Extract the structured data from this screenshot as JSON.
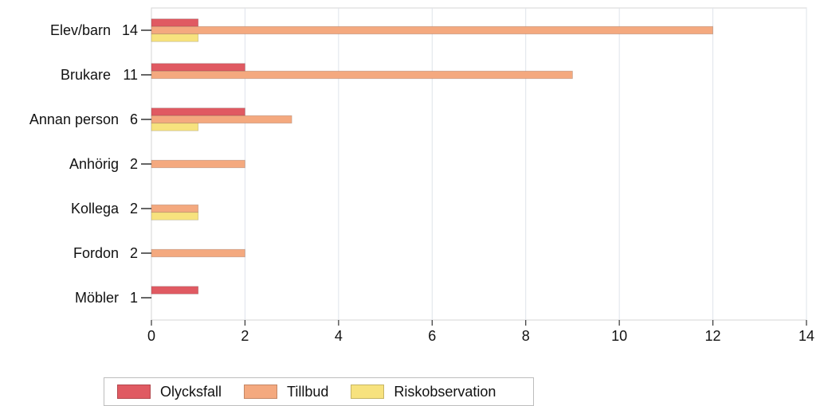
{
  "chart_data": {
    "type": "bar",
    "orientation": "horizontal",
    "categories": [
      "Elev/barn",
      "Brukare",
      "Annan person",
      "Anhörig",
      "Kollega",
      "Fordon",
      "Möbler"
    ],
    "totals": [
      "14",
      "11",
      "6",
      "2",
      "2",
      "2",
      "1"
    ],
    "series": [
      {
        "name": "Olycksfall",
        "values": [
          1,
          2,
          2,
          0,
          0,
          0,
          1
        ],
        "color": "#e05a62"
      },
      {
        "name": "Tillbud",
        "values": [
          12,
          9,
          3,
          2,
          1,
          2,
          0
        ],
        "color": "#f4a97f"
      },
      {
        "name": "Riskobservation",
        "values": [
          1,
          0,
          1,
          0,
          1,
          0,
          0
        ],
        "color": "#f7e27e"
      }
    ],
    "xlim": [
      0,
      14
    ],
    "xticks": [
      "0",
      "2",
      "4",
      "6",
      "8",
      "10",
      "12",
      "14"
    ],
    "grid": true,
    "legend_position": "bottom-left"
  }
}
